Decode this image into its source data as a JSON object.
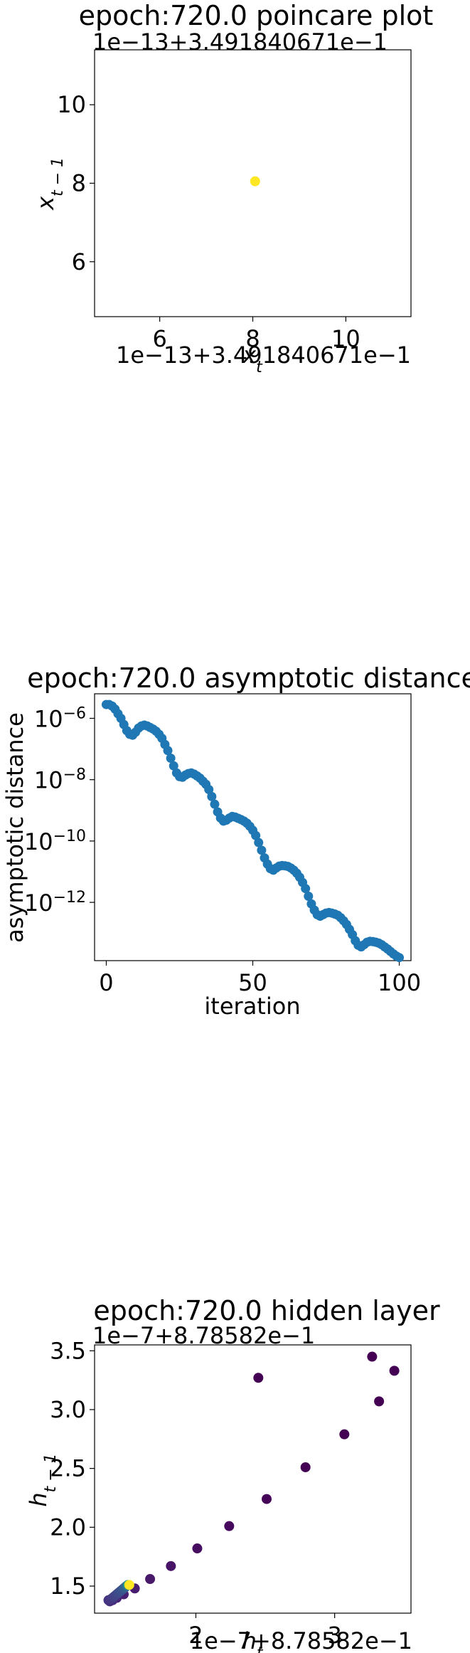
{
  "chart_data": [
    {
      "type": "scatter",
      "title": "epoch:720.0 poincare plot",
      "xlabel": "x_t",
      "ylabel": "x_{t-1}",
      "x_offset_text": "1e−13+3.491840671e−1",
      "y_offset_text": "1e−13+3.491840671e−1",
      "xlim": [
        4.6,
        11.4
      ],
      "ylim": [
        4.6,
        11.4
      ],
      "xticks": [
        6,
        8,
        10
      ],
      "yticks": [
        6,
        8,
        10
      ],
      "points": [
        {
          "x": 8.05,
          "y": 8.05,
          "color": "#fde725"
        }
      ]
    },
    {
      "type": "scatter",
      "title": "epoch:720.0 asymptotic distance",
      "xlabel": "iteration",
      "ylabel": "asymptotic distance",
      "yscale": "log",
      "xlim": [
        -4,
        104
      ],
      "ylim_log10": [
        -13.9,
        -5.2
      ],
      "xticks": [
        0,
        50,
        100
      ],
      "yticks_log10": [
        -12,
        -10,
        -8,
        -6
      ],
      "ytick_labels": [
        "10",
        "10",
        "10",
        "10"
      ],
      "ytick_exponents": [
        "−12",
        "−10",
        "−8",
        "−6"
      ],
      "color": "#1f77b4",
      "log10_values": [
        -5.55,
        -5.55,
        -5.6,
        -5.7,
        -5.85,
        -6.0,
        -6.2,
        -6.4,
        -6.52,
        -6.55,
        -6.45,
        -6.32,
        -6.25,
        -6.22,
        -6.25,
        -6.3,
        -6.35,
        -6.42,
        -6.52,
        -6.65,
        -6.85,
        -7.05,
        -7.3,
        -7.55,
        -7.78,
        -7.9,
        -7.92,
        -7.85,
        -7.8,
        -7.78,
        -7.82,
        -7.88,
        -7.95,
        -8.05,
        -8.15,
        -8.32,
        -8.55,
        -8.8,
        -9.05,
        -9.25,
        -9.35,
        -9.32,
        -9.25,
        -9.2,
        -9.22,
        -9.26,
        -9.3,
        -9.35,
        -9.42,
        -9.52,
        -9.65,
        -9.82,
        -10.05,
        -10.3,
        -10.55,
        -10.75,
        -10.9,
        -10.95,
        -10.88,
        -10.82,
        -10.8,
        -10.81,
        -10.83,
        -10.88,
        -10.95,
        -11.05,
        -11.18,
        -11.35,
        -11.55,
        -11.8,
        -12.05,
        -12.25,
        -12.4,
        -12.45,
        -12.4,
        -12.35,
        -12.33,
        -12.35,
        -12.38,
        -12.42,
        -12.5,
        -12.6,
        -12.72,
        -12.88,
        -13.05,
        -13.25,
        -13.4,
        -13.45,
        -13.38,
        -13.3,
        -13.27,
        -13.28,
        -13.3,
        -13.33,
        -13.38,
        -13.45,
        -13.52,
        -13.6,
        -13.68,
        -13.75,
        -13.8
      ]
    },
    {
      "type": "scatter",
      "title": "epoch:720.0 hidden layer",
      "xlabel": "h_t",
      "ylabel": "h_{t-1}",
      "x_offset_text": "1e−7+8.78582e−1",
      "y_offset_text": "1e−7+8.78582e−1",
      "xlim": [
        1.27,
        3.55
      ],
      "ylim": [
        1.27,
        3.55
      ],
      "xticks": [
        2,
        3
      ],
      "yticks": [
        1.5,
        2.0,
        2.5,
        3.0,
        3.5
      ],
      "ytick_labels": [
        "1.5",
        "2.0",
        "2.5",
        "3.0",
        "3.5"
      ],
      "points": [
        {
          "x": 3.27,
          "y": 3.45,
          "color": "#440154"
        },
        {
          "x": 3.43,
          "y": 3.33,
          "color": "#440154"
        },
        {
          "x": 2.45,
          "y": 3.27,
          "color": "#440154"
        },
        {
          "x": 3.32,
          "y": 3.07,
          "color": "#440154"
        },
        {
          "x": 3.07,
          "y": 2.79,
          "color": "#440154"
        },
        {
          "x": 2.79,
          "y": 2.51,
          "color": "#440154"
        },
        {
          "x": 2.51,
          "y": 2.24,
          "color": "#450457"
        },
        {
          "x": 2.24,
          "y": 2.01,
          "color": "#46085c"
        },
        {
          "x": 2.01,
          "y": 1.82,
          "color": "#470d60"
        },
        {
          "x": 1.82,
          "y": 1.67,
          "color": "#481467"
        },
        {
          "x": 1.67,
          "y": 1.56,
          "color": "#48186a"
        },
        {
          "x": 1.56,
          "y": 1.48,
          "color": "#481c6e"
        },
        {
          "x": 1.48,
          "y": 1.43,
          "color": "#482173"
        },
        {
          "x": 1.43,
          "y": 1.4,
          "color": "#482576"
        },
        {
          "x": 1.4,
          "y": 1.38,
          "color": "#472a7a"
        },
        {
          "x": 1.38,
          "y": 1.37,
          "color": "#472e7c"
        },
        {
          "x": 1.37,
          "y": 1.38,
          "color": "#46337f"
        },
        {
          "x": 1.39,
          "y": 1.39,
          "color": "#453781"
        },
        {
          "x": 1.4,
          "y": 1.4,
          "color": "#443b84"
        },
        {
          "x": 1.41,
          "y": 1.41,
          "color": "#434085"
        },
        {
          "x": 1.42,
          "y": 1.42,
          "color": "#424486"
        },
        {
          "x": 1.43,
          "y": 1.43,
          "color": "#414487"
        },
        {
          "x": 1.44,
          "y": 1.44,
          "color": "#3f4889"
        },
        {
          "x": 1.45,
          "y": 1.45,
          "color": "#3e4c8a"
        },
        {
          "x": 1.46,
          "y": 1.46,
          "color": "#3c508b"
        },
        {
          "x": 1.47,
          "y": 1.47,
          "color": "#3b528b"
        },
        {
          "x": 1.48,
          "y": 1.48,
          "color": "#38598c"
        },
        {
          "x": 1.49,
          "y": 1.49,
          "color": "#355f8d"
        },
        {
          "x": 1.5,
          "y": 1.5,
          "color": "#31688e"
        },
        {
          "x": 1.51,
          "y": 1.51,
          "color": "#21918c"
        },
        {
          "x": 1.52,
          "y": 1.51,
          "color": "#fde725"
        }
      ]
    }
  ]
}
